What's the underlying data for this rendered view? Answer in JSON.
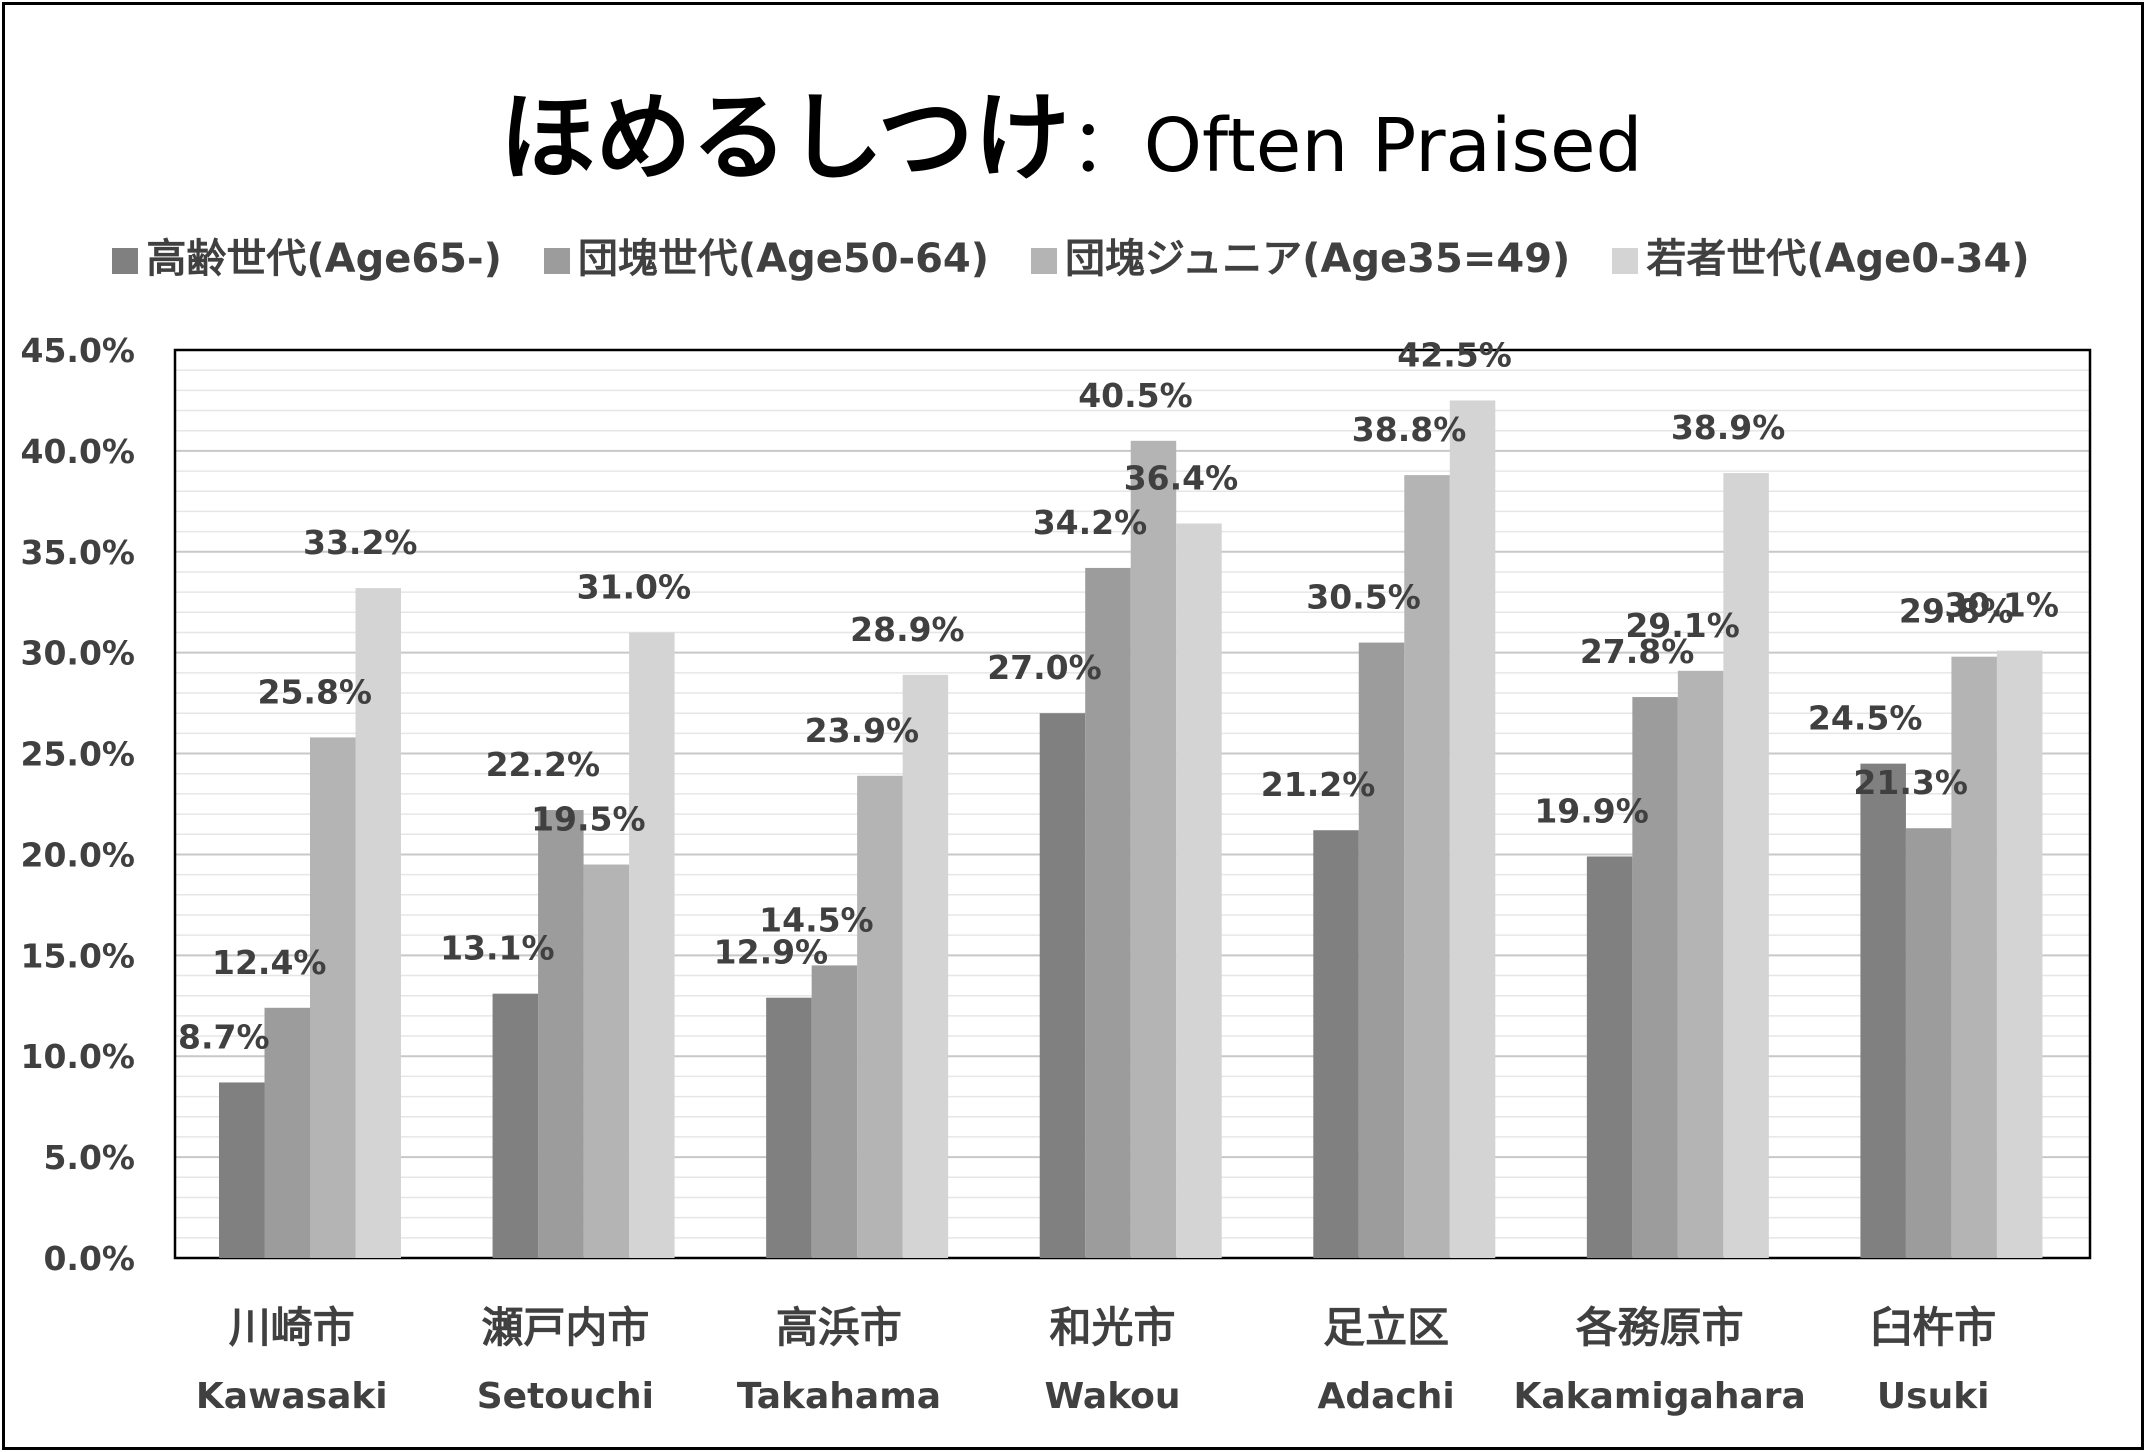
{
  "title": {
    "main": "ほめるしつけ",
    "separator": "：",
    "sub": "Often Praised"
  },
  "colors": {
    "series": [
      "#808080",
      "#9c9c9c",
      "#b4b4b4",
      "#d4d4d4"
    ],
    "label_text": "#404040",
    "grid_major": "#c8c8c8",
    "grid_minor": "#e6e6e6"
  },
  "chart_data": {
    "type": "bar",
    "title": "ほめるしつけ： Often Praised",
    "categories": [
      "川崎市",
      "瀬戸内市",
      "高浜市",
      "和光市",
      "足立区",
      "各務原市",
      "臼杵市"
    ],
    "categories_en": [
      "Kawasaki",
      "Setouchi",
      "Takahama",
      "Wakou",
      "Adachi",
      "Kakamigahara",
      "Usuki"
    ],
    "series": [
      {
        "name": "高齢世代(Age65-)",
        "values": [
          8.7,
          13.1,
          12.9,
          27.0,
          21.2,
          19.9,
          24.5
        ]
      },
      {
        "name": "団塊世代(Age50-64)",
        "values": [
          12.4,
          22.2,
          14.5,
          34.2,
          30.5,
          27.8,
          21.3
        ]
      },
      {
        "name": "団塊ジュニア(Age35=49)",
        "values": [
          25.8,
          19.5,
          23.9,
          40.5,
          38.8,
          29.1,
          29.8
        ]
      },
      {
        "name": "若者世代(Age0-34)",
        "values": [
          33.2,
          31.0,
          28.9,
          36.4,
          42.5,
          38.9,
          30.1
        ]
      }
    ],
    "ylim": [
      0,
      45
    ],
    "ytick_step": 5,
    "ytick_labels": [
      "0.0%",
      "5.0%",
      "10.0%",
      "15.0%",
      "20.0%",
      "25.0%",
      "30.0%",
      "35.0%",
      "40.0%",
      "45.0%"
    ],
    "value_suffix": "%",
    "grid": true,
    "legend": "top"
  }
}
